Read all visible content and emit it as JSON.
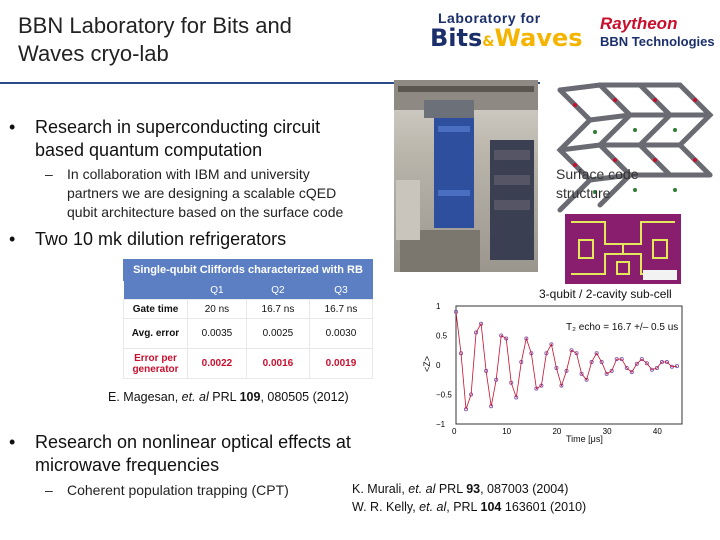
{
  "slide": {
    "title_line1": "BBN Laboratory for Bits and",
    "title_line2": "Waves  cryo-lab"
  },
  "logos": {
    "lab_line1": "Laboratory for",
    "lab_bits": "Bits",
    "lab_amp": "&",
    "lab_waves": "Waves",
    "raytheon": "Raytheon",
    "bbn": "BBN Technologies"
  },
  "bullets": {
    "b1_line1": "Research in superconducting circuit",
    "b1_line2": "based quantum computation",
    "b1_sub_line1": "In collaboration with IBM and university",
    "b1_sub_line2": "partners we are designing a scalable cQED",
    "b1_sub_line3": "qubit architecture based on the surface code",
    "b2": "Two 10 mk dilution refrigerators",
    "b3_line1": "Research on nonlinear optical effects at",
    "b3_line2": "microwave frequencies",
    "b3_sub": "Coherent population trapping (CPT)",
    "bullet_char": "•",
    "dash_char": "–"
  },
  "figures": {
    "surface_label_line1": "Surface code",
    "surface_label_line2": "structure",
    "chip_label": "3-qubit / 2-cavity sub-cell"
  },
  "rb_table": {
    "header": "Single-qubit Cliffords characterized with RB",
    "qubits": [
      "Q1",
      "Q2",
      "Q3"
    ],
    "rows": [
      {
        "label": "Gate time",
        "values": [
          "20 ns",
          "16.7 ns",
          "16.7 ns"
        ]
      },
      {
        "label": "Avg. error",
        "values": [
          "0.0035",
          "0.0025",
          "0.0030"
        ]
      },
      {
        "label": "Error per generator",
        "values": [
          "0.0022",
          "0.0016",
          "0.0019"
        ]
      }
    ]
  },
  "citations": {
    "c1_pre": "E. Magesan, ",
    "c1_et": "et. al",
    "c1_mid": "  PRL ",
    "c1_vol": "109",
    "c1_post": ", 080505 (2012)",
    "c2_pre": "K. Murali, ",
    "c2_et": "et. al",
    "c2_mid": " PRL ",
    "c2_vol": "93",
    "c2_post": ", 087003 (2004)",
    "c3_pre": "W. R. Kelly, ",
    "c3_et": "et. al",
    "c3_mid": ", PRL ",
    "c3_vol": "104",
    "c3_post": " 163601 (2010)"
  },
  "chart_data": {
    "type": "scatter",
    "annotation": "T₂ echo = 16.7 +/– 0.5 us",
    "xlabel": "Time [μs]",
    "ylabel": "<Z>",
    "xticks": [
      "0",
      "10",
      "20",
      "30",
      "40"
    ],
    "yticks": [
      "1",
      "0.5",
      "0",
      "−0.5",
      "−1"
    ],
    "xlim": [
      0,
      45
    ],
    "ylim": [
      -1,
      1
    ],
    "series": [
      {
        "color": "#7b4fa8",
        "x": [
          0,
          1,
          2,
          3,
          4,
          5,
          6,
          7,
          8,
          9,
          10,
          11,
          12,
          13,
          14,
          15,
          16,
          17,
          18,
          19,
          20,
          21,
          22,
          23,
          24,
          25,
          26,
          27,
          28,
          29,
          30,
          31,
          32,
          33,
          34,
          35,
          36,
          37,
          38,
          39,
          40,
          41,
          42,
          43,
          44
        ],
        "y": [
          0.9,
          0.2,
          -0.75,
          -0.5,
          0.55,
          0.7,
          -0.1,
          -0.7,
          -0.25,
          0.5,
          0.45,
          -0.3,
          -0.55,
          0.05,
          0.45,
          0.2,
          -0.4,
          -0.35,
          0.2,
          0.35,
          -0.05,
          -0.35,
          -0.1,
          0.25,
          0.2,
          -0.15,
          -0.25,
          0.05,
          0.2,
          0.05,
          -0.15,
          -0.1,
          0.1,
          0.1,
          -0.05,
          -0.12,
          0.02,
          0.1,
          0.03,
          -0.08,
          -0.05,
          0.05,
          0.05,
          -0.03,
          -0.02
        ]
      }
    ]
  }
}
